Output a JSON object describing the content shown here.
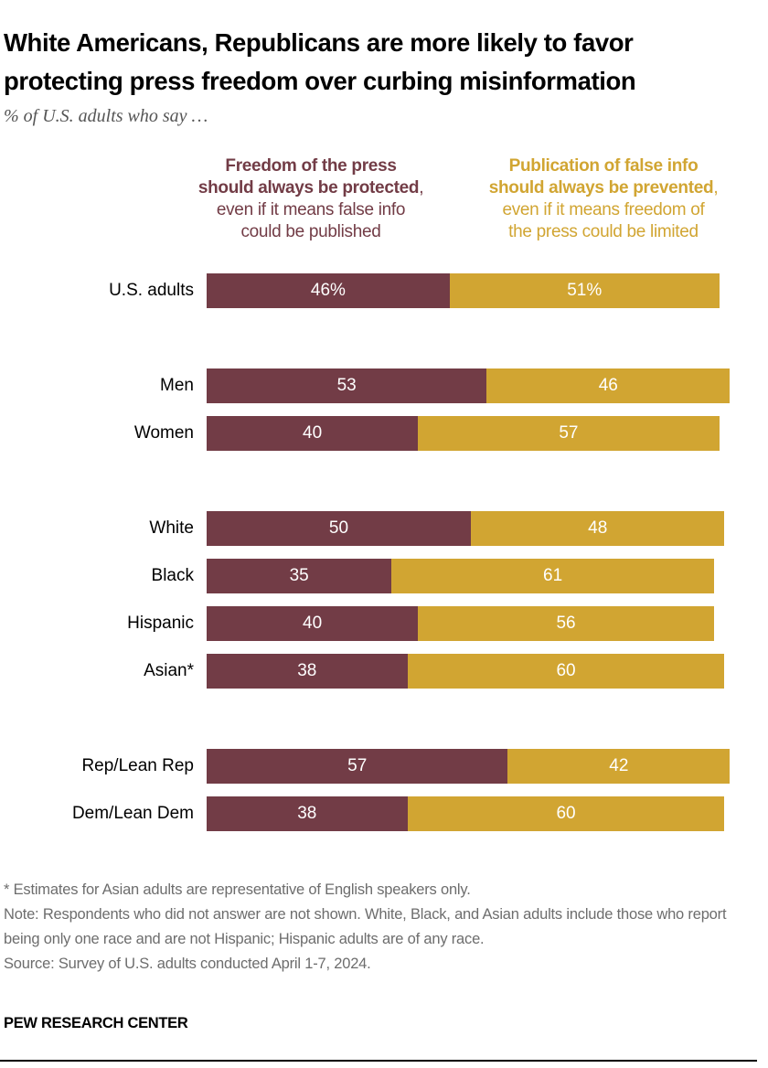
{
  "title_line1": "White Americans, Republicans are more likely to favor",
  "title_line2": "protecting press freedom over curbing misinformation",
  "subtitle": "% of U.S. adults who say …",
  "colors": {
    "press_freedom": "#723c46",
    "prevent_false_info": "#d1a532"
  },
  "chart_data": {
    "type": "bar",
    "orientation": "horizontal",
    "stacked": true,
    "categories": [
      "U.S. adults",
      "Men",
      "Women",
      "White",
      "Black",
      "Hispanic",
      "Asian*",
      "Rep/Lean Rep",
      "Dem/Lean Dem"
    ],
    "groups": [
      [
        0
      ],
      [
        1,
        2
      ],
      [
        3,
        4,
        5,
        6
      ],
      [
        7,
        8
      ]
    ],
    "series": [
      {
        "name": "Freedom of the press should always be protected, even if it means false info could be published",
        "legend_bold_1": "Freedom of the press",
        "legend_bold_2": "should always be protected",
        "legend_rest_1": "even if it means false info",
        "legend_rest_2": "could be published",
        "values": [
          46,
          53,
          40,
          50,
          35,
          40,
          38,
          57,
          38
        ],
        "labels": [
          "46%",
          "53",
          "40",
          "50",
          "35",
          "40",
          "38",
          "57",
          "38"
        ]
      },
      {
        "name": "Publication of false info should always be prevented, even if it means freedom of the press could be limited",
        "legend_bold_1": "Publication of false info",
        "legend_bold_2": "should always be prevented",
        "legend_rest_1": "even if it means freedom of",
        "legend_rest_2": "the press could be limited",
        "values": [
          51,
          46,
          57,
          48,
          61,
          56,
          60,
          42,
          60
        ],
        "labels": [
          "51%",
          "46",
          "57",
          "48",
          "61",
          "56",
          "60",
          "42",
          "60"
        ]
      }
    ],
    "xlim": [
      0,
      100
    ],
    "grid": false
  },
  "notes": {
    "asterisk": "* Estimates for Asian adults are representative of English speakers only.",
    "note": "Note: Respondents who did not answer are not shown. White, Black, and Asian adults include those who report being only one race and are not Hispanic; Hispanic adults are of any race.",
    "source": "Source: Survey of U.S. adults conducted April 1-7, 2024."
  },
  "brand": "PEW RESEARCH CENTER"
}
